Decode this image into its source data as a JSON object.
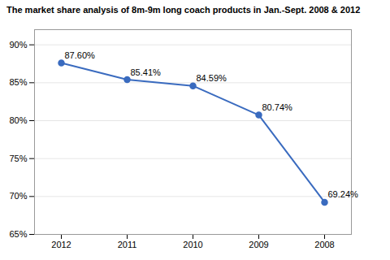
{
  "chart_data": {
    "type": "line",
    "title": "The market share analysis of 8m-9m long coach products in Jan.-Sept. 2008 & 2012",
    "categories": [
      "2012",
      "2011",
      "2010",
      "2009",
      "2008"
    ],
    "values": [
      87.6,
      85.41,
      84.59,
      80.74,
      69.24
    ],
    "value_labels": [
      "87.60%",
      "85.41%",
      "84.59%",
      "80.74%",
      "69.24%"
    ],
    "data_labels": true,
    "color": "#3a6bbf",
    "marker": "circle",
    "ylim": [
      65,
      92
    ],
    "yticks": [
      {
        "value": 65,
        "label": "65%"
      },
      {
        "value": 70,
        "label": "70%"
      },
      {
        "value": 75,
        "label": "75%"
      },
      {
        "value": 80,
        "label": "80%"
      },
      {
        "value": 85,
        "label": "85%"
      },
      {
        "value": 90,
        "label": "90%"
      }
    ],
    "grid": true
  }
}
